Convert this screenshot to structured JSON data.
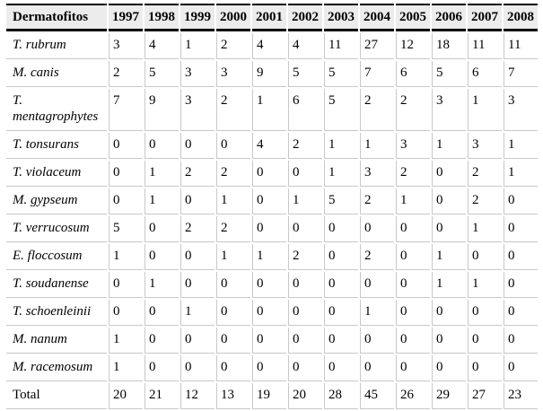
{
  "chart_data": {
    "type": "table",
    "title": "Dermatofitos",
    "header": [
      "Dermatofitos",
      "1997",
      "1998",
      "1999",
      "2000",
      "2001",
      "2002",
      "2003",
      "2004",
      "2005",
      "2006",
      "2007",
      "2008"
    ],
    "rows": [
      {
        "label": "T. rubrum",
        "italic_label": true,
        "values": [
          3,
          4,
          1,
          2,
          4,
          4,
          11,
          27,
          12,
          18,
          11,
          11
        ]
      },
      {
        "label": "M. canis",
        "italic_label": true,
        "values": [
          2,
          5,
          3,
          3,
          9,
          5,
          5,
          7,
          6,
          5,
          6,
          7
        ]
      },
      {
        "label": "T. mentagrophytes",
        "italic_label": true,
        "values": [
          7,
          9,
          3,
          2,
          1,
          6,
          5,
          2,
          2,
          3,
          1,
          3
        ]
      },
      {
        "label": "T. tonsurans",
        "italic_label": true,
        "values": [
          0,
          0,
          0,
          0,
          4,
          2,
          1,
          1,
          3,
          1,
          3,
          1
        ]
      },
      {
        "label": "T. violaceum",
        "italic_label": true,
        "values": [
          0,
          1,
          2,
          2,
          0,
          0,
          1,
          3,
          2,
          0,
          2,
          1
        ]
      },
      {
        "label": "M. gypseum",
        "italic_label": true,
        "values": [
          0,
          1,
          0,
          1,
          0,
          1,
          5,
          2,
          1,
          0,
          2,
          0
        ]
      },
      {
        "label": "T. verrucosum",
        "italic_label": true,
        "values": [
          5,
          0,
          2,
          2,
          0,
          0,
          0,
          0,
          0,
          0,
          1,
          0
        ]
      },
      {
        "label": "E. floccosum",
        "italic_label": true,
        "values": [
          1,
          0,
          0,
          1,
          1,
          2,
          0,
          2,
          0,
          1,
          0,
          0
        ]
      },
      {
        "label": "T. soudanense",
        "italic_label": true,
        "values": [
          0,
          1,
          0,
          0,
          0,
          0,
          0,
          0,
          0,
          1,
          1,
          0
        ]
      },
      {
        "label": "T. schoenleinii",
        "italic_label": true,
        "values": [
          0,
          0,
          1,
          0,
          0,
          0,
          0,
          1,
          0,
          0,
          0,
          0
        ]
      },
      {
        "label": "M. nanum",
        "italic_label": true,
        "values": [
          1,
          0,
          0,
          0,
          0,
          0,
          0,
          0,
          0,
          0,
          0,
          0
        ]
      },
      {
        "label": "M. racemosum",
        "italic_label": true,
        "values": [
          1,
          0,
          0,
          0,
          0,
          0,
          0,
          0,
          0,
          0,
          0,
          0
        ]
      },
      {
        "label": "Total",
        "italic_label": false,
        "values": [
          20,
          21,
          12,
          13,
          19,
          20,
          28,
          45,
          26,
          29,
          27,
          23
        ]
      }
    ],
    "layout": {
      "first_column_is_row_labels": true,
      "grid": "light-gray rules with cell spacing",
      "header_style": "bold, gray background, black rules above and below"
    }
  },
  "colors": {
    "header_background": "#ececec",
    "header_rule": "#000000",
    "grid_line": "#c8c8c8",
    "text": "#000000",
    "page_background": "#ffffff"
  }
}
